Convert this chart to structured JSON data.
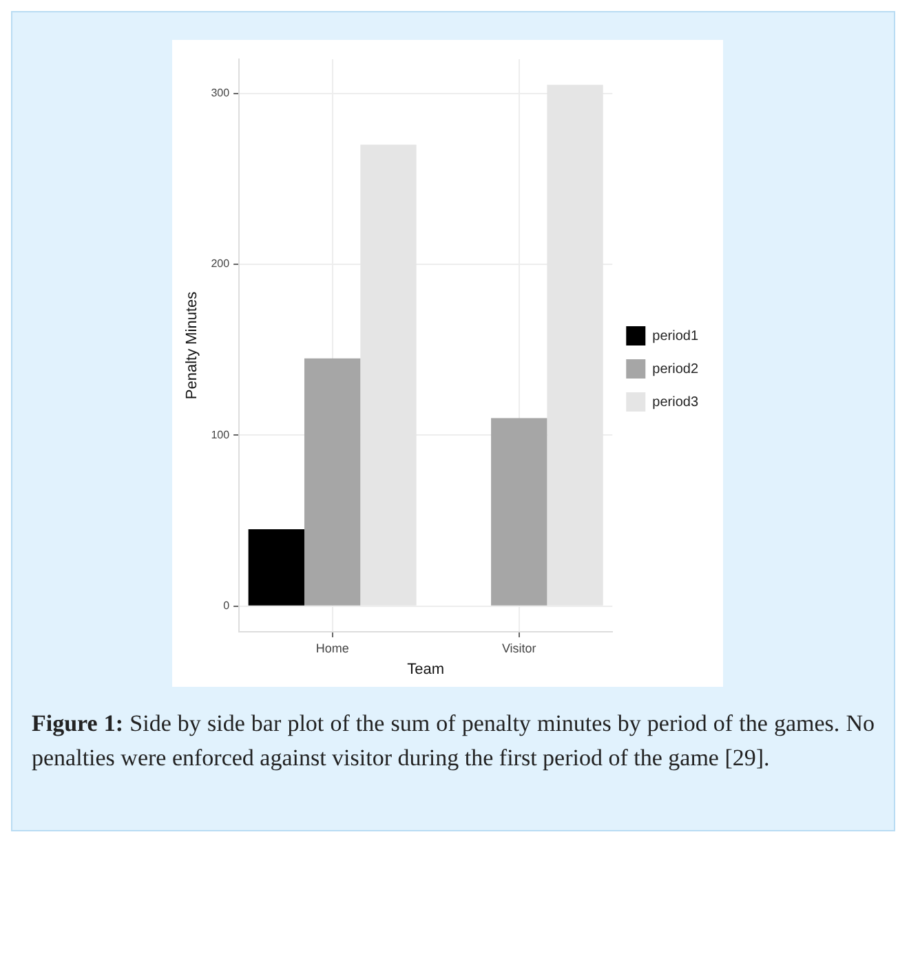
{
  "chart_data": {
    "type": "bar",
    "xlabel": "Team",
    "ylabel": "Penalty Minutes",
    "categories": [
      "Home",
      "Visitor"
    ],
    "series": [
      {
        "name": "period1",
        "color": "#000000",
        "values": [
          45,
          0
        ]
      },
      {
        "name": "period2",
        "color": "#a6a6a6",
        "values": [
          145,
          110
        ]
      },
      {
        "name": "period3",
        "color": "#e5e5e5",
        "values": [
          270,
          305
        ]
      }
    ],
    "ylim": [
      -15,
      320
    ],
    "yticks": [
      0,
      100,
      200,
      300
    ],
    "grid": true,
    "legend": "right",
    "annotations": [
      "Figure 1: Side by side bar plot of the sum of penalty minutes by period of the games. No penalties were enforced against visitor during the first period of the game [29]."
    ]
  }
}
